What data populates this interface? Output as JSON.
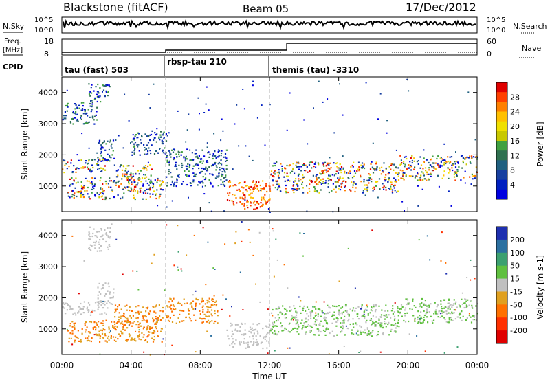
{
  "header": {
    "title": "Blackstone (fitACF)",
    "beam": "Beam 05",
    "date": "17/Dec/2012"
  },
  "top_panels": {
    "nsky_label": "N.Sky",
    "nsky_ticks": [
      "10^5",
      "10^0"
    ],
    "nsearch_label": "N.Search",
    "nsearch_ticks": [
      "10^5",
      "10^0"
    ],
    "freq_label": "Freq.",
    "freq_unit": "[MHz]",
    "freq_ticks": [
      "18",
      "8"
    ],
    "nave_label": "Nave",
    "nave_ticks": [
      "60",
      "0"
    ],
    "cpid_label": "CPID",
    "cpid_segments": [
      {
        "label": "tau (fast) 503",
        "start_hour": 0,
        "end_hour": 6
      },
      {
        "label": "rbsp-tau 210",
        "start_hour": 6,
        "end_hour": 12
      },
      {
        "label": "themis (tau) -3310",
        "start_hour": 12,
        "end_hour": 24
      }
    ]
  },
  "time_axis": {
    "label": "Time UT",
    "ticks": [
      "00:00",
      "04:00",
      "08:00",
      "12:00",
      "16:00",
      "20:00",
      "00:00"
    ],
    "tick_hours": [
      0,
      4,
      8,
      12,
      16,
      20,
      24
    ]
  },
  "chart_data": [
    {
      "type": "heatmap",
      "name": "power-panel",
      "ylabel": "Slant Range [km]",
      "y_ticks": [
        1000,
        2000,
        3000,
        4000
      ],
      "xlim_hours": [
        0,
        24
      ],
      "ylim_km": [
        180,
        4500
      ],
      "colorbar": {
        "label": "Power [dB]",
        "ticks": [
          "28",
          "24",
          "20",
          "16",
          "12",
          "8",
          "4"
        ],
        "colors": [
          "#e00000",
          "#ff4000",
          "#ff8000",
          "#ffc000",
          "#f0e000",
          "#c8c800",
          "#40a040",
          "#307050",
          "#206080",
          "#1840a0",
          "#0020c0",
          "#0000e0"
        ]
      },
      "regions": [
        {
          "t0": 0.0,
          "t1": 2.6,
          "r0": 1450,
          "r1": 1900,
          "level": "mixed"
        },
        {
          "t0": 0.3,
          "t1": 5.8,
          "r0": 600,
          "r1": 1300,
          "level": "mixed"
        },
        {
          "t0": 2.0,
          "t1": 3.0,
          "r0": 1800,
          "r1": 2500,
          "level": "low"
        },
        {
          "t0": 0.0,
          "t1": 2.0,
          "r0": 3000,
          "r1": 3700,
          "level": "low"
        },
        {
          "t0": 1.5,
          "t1": 2.8,
          "r0": 3700,
          "r1": 4300,
          "level": "low"
        },
        {
          "t0": 3.0,
          "t1": 5.2,
          "r0": 1200,
          "r1": 1700,
          "level": "mixed"
        },
        {
          "t0": 4.0,
          "t1": 6.0,
          "r0": 2000,
          "r1": 2800,
          "level": "low"
        },
        {
          "t0": 6.0,
          "t1": 9.5,
          "r0": 1000,
          "r1": 2200,
          "level": "low"
        },
        {
          "t0": 9.5,
          "t1": 12.0,
          "r0": 400,
          "r1": 1200,
          "level": "high"
        },
        {
          "t0": 10.5,
          "t1": 11.8,
          "r0": 250,
          "r1": 600,
          "level": "high"
        },
        {
          "t0": 12.0,
          "t1": 19.5,
          "r0": 800,
          "r1": 1800,
          "level": "mixed"
        },
        {
          "t0": 19.5,
          "t1": 24.0,
          "r0": 1200,
          "r1": 2000,
          "level": "mixed"
        }
      ]
    },
    {
      "type": "heatmap",
      "name": "velocity-panel",
      "ylabel": "Slant Range [km]",
      "y_ticks": [
        1000,
        2000,
        3000,
        4000
      ],
      "xlim_hours": [
        0,
        24
      ],
      "ylim_km": [
        180,
        4500
      ],
      "colorbar": {
        "label": "Velocity [m s-1]",
        "ticks": [
          "200",
          "100",
          "50",
          "15",
          "-15",
          "-50",
          "-100",
          "-200"
        ],
        "colors": [
          "#1e30b0",
          "#2c70a0",
          "#3ca070",
          "#60c040",
          "#c0c0c0",
          "#e0a020",
          "#ff7000",
          "#ff3000",
          "#e00000"
        ]
      },
      "regions": [
        {
          "t0": 0.0,
          "t1": 2.6,
          "r0": 1450,
          "r1": 1900,
          "level": "ground"
        },
        {
          "t0": 0.3,
          "t1": 5.8,
          "r0": 600,
          "r1": 1300,
          "level": "neg"
        },
        {
          "t0": 3.0,
          "t1": 5.8,
          "r0": 1200,
          "r1": 1800,
          "level": "neg"
        },
        {
          "t0": 2.0,
          "t1": 3.0,
          "r0": 1800,
          "r1": 2500,
          "level": "ground"
        },
        {
          "t0": 1.5,
          "t1": 2.8,
          "r0": 3500,
          "r1": 4300,
          "level": "ground"
        },
        {
          "t0": 6.0,
          "t1": 9.0,
          "r0": 1200,
          "r1": 2000,
          "level": "neg"
        },
        {
          "t0": 9.5,
          "t1": 12.0,
          "r0": 400,
          "r1": 1200,
          "level": "ground"
        },
        {
          "t0": 12.0,
          "t1": 19.5,
          "r0": 800,
          "r1": 1800,
          "level": "pos"
        },
        {
          "t0": 19.5,
          "t1": 24.0,
          "r0": 1200,
          "r1": 2000,
          "level": "pos"
        }
      ]
    }
  ]
}
